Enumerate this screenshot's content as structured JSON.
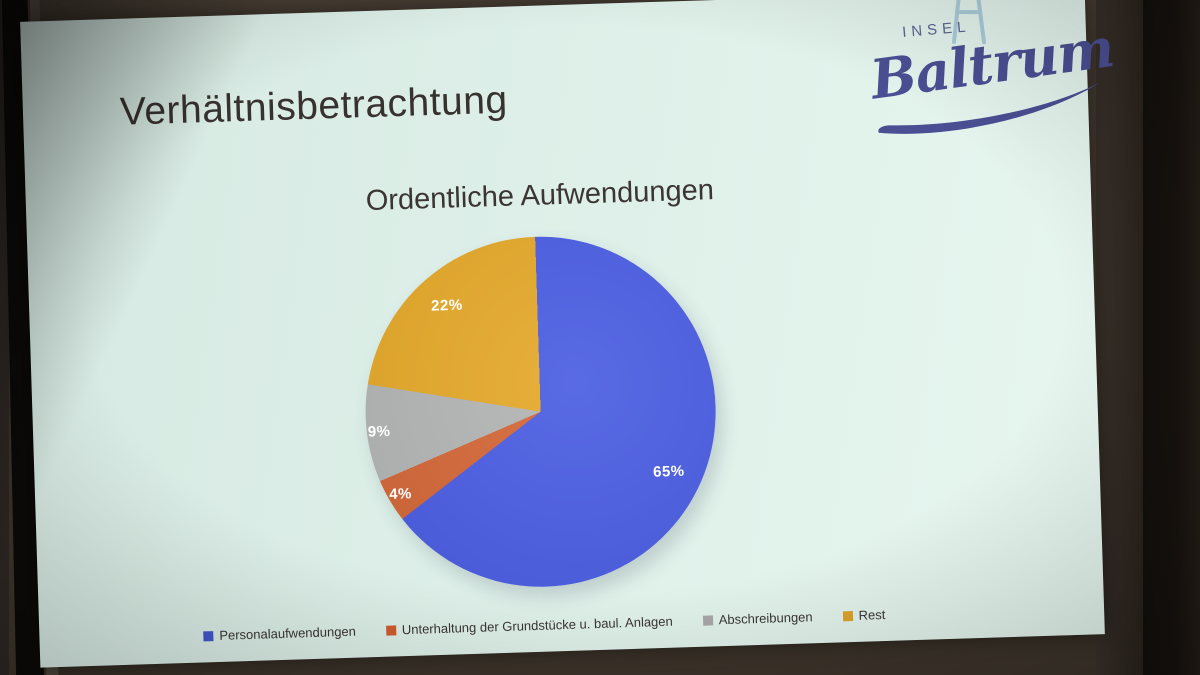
{
  "slide": {
    "title": "Verhältnisbetrachtung",
    "logo": {
      "top_text": "INSEL",
      "name_text": "Baltrum",
      "icon": "lighthouse-icon",
      "text_color": "#4a4f93",
      "icon_color": "#a9ccd9"
    }
  },
  "chart_data": {
    "type": "pie",
    "title": "Ordentliche Aufwendungen",
    "categories": [
      "Personalaufwendungen",
      "Unterhaltung der Grundstücke u. baul. Anlagen",
      "Abschreibungen",
      "Rest"
    ],
    "values": [
      65,
      4,
      9,
      22
    ],
    "labels": [
      "65%",
      "4%",
      "9%",
      "22%"
    ],
    "colors": [
      "#4d5fe3",
      "#d4693a",
      "#b4b6b5",
      "#e5aa2c"
    ],
    "legend_colors": [
      "#4355cc",
      "#cc5c2c",
      "#a8a8aa",
      "#dca42a"
    ],
    "label_color": "#ffffff",
    "start_angle_deg": 0,
    "direction": "clockwise",
    "legend_position": "bottom",
    "grid": false
  }
}
